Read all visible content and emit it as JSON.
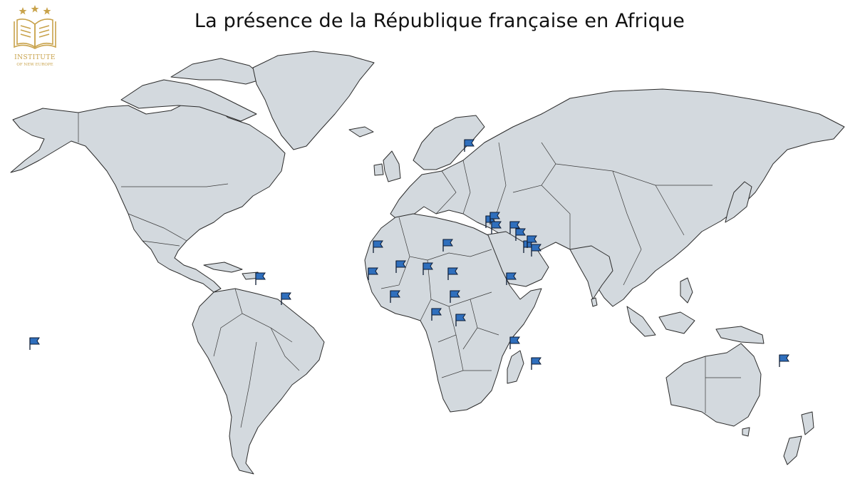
{
  "title": "La présence de la République française en Afrique",
  "logo": {
    "icon": "open-book-with-stars-icon",
    "line1": "INSTITUTE",
    "line2": "OF NEW EUROPE",
    "color": "#c8a24a"
  },
  "map": {
    "land_color": "#d3d9de",
    "border_color": "#2b2b2b",
    "flag_color": "#2f6fbd",
    "flag_icon": "blue-flag-icon",
    "flag_count": 31
  }
}
